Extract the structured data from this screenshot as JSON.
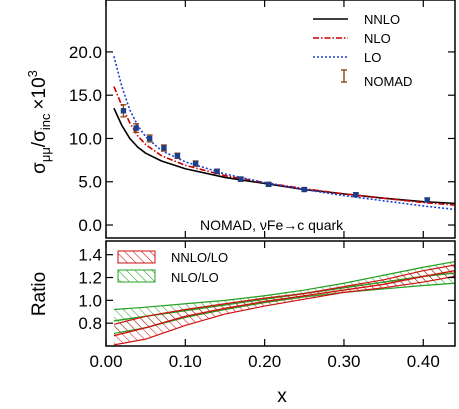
{
  "chart_data": [
    {
      "type": "line",
      "panel": "top",
      "ylabel": "σμμ/σinc ×10³",
      "ylabel_parts": {
        "sigma": "σ",
        "sub_num": "μμ",
        "slash": "/",
        "sub_den": "inc",
        "times": "×10",
        "exp": "3"
      },
      "xlim": [
        0.0,
        0.44
      ],
      "ylim": [
        -1.5,
        26.0
      ],
      "yticks": [
        0.0,
        5.0,
        10.0,
        15.0,
        20.0
      ],
      "ytick_labels": [
        "0.0",
        "5.0",
        "10.0",
        "15.0",
        "20.0"
      ],
      "annotation": "NOMAD, νFe→c quark",
      "legend": {
        "position": "top-right",
        "entries": [
          "NNLO",
          "NLO",
          "LO",
          "NOMAD"
        ]
      },
      "series": [
        {
          "name": "NNLO",
          "style": "solid",
          "color": "#000000",
          "x": [
            0.01,
            0.02,
            0.03,
            0.04,
            0.05,
            0.07,
            0.1,
            0.15,
            0.2,
            0.25,
            0.3,
            0.35,
            0.4,
            0.44
          ],
          "y": [
            13.5,
            11.5,
            10.0,
            9.0,
            8.3,
            7.4,
            6.5,
            5.5,
            4.8,
            4.1,
            3.6,
            3.1,
            2.7,
            2.5
          ]
        },
        {
          "name": "NLO",
          "style": "dash-dot",
          "color": "#cc0000",
          "x": [
            0.01,
            0.02,
            0.03,
            0.04,
            0.05,
            0.07,
            0.1,
            0.15,
            0.2,
            0.25,
            0.3,
            0.35,
            0.4,
            0.44
          ],
          "y": [
            16.0,
            13.8,
            11.8,
            10.3,
            9.3,
            8.0,
            6.9,
            5.7,
            4.9,
            4.2,
            3.6,
            3.1,
            2.6,
            2.3
          ]
        },
        {
          "name": "LO",
          "style": "dotted",
          "color": "#1f3fd1",
          "x": [
            0.01,
            0.02,
            0.03,
            0.04,
            0.05,
            0.07,
            0.1,
            0.15,
            0.2,
            0.25,
            0.3,
            0.35,
            0.4,
            0.44
          ],
          "y": [
            19.5,
            16.0,
            13.3,
            11.5,
            10.2,
            8.6,
            7.3,
            5.9,
            4.9,
            4.1,
            3.4,
            2.8,
            2.2,
            1.8
          ]
        },
        {
          "name": "NOMAD",
          "style": "points",
          "color": "#1c3f8c",
          "errorbar_color": "#8b4513",
          "x": [
            0.022,
            0.038,
            0.055,
            0.073,
            0.09,
            0.113,
            0.14,
            0.17,
            0.205,
            0.25,
            0.315,
            0.405
          ],
          "y": [
            13.2,
            11.2,
            10.0,
            8.9,
            8.0,
            7.1,
            6.2,
            5.3,
            4.7,
            4.1,
            3.5,
            2.9
          ],
          "err": [
            0.7,
            0.5,
            0.4,
            0.35,
            0.3,
            0.3,
            0.25,
            0.25,
            0.2,
            0.2,
            0.2,
            0.2
          ]
        }
      ]
    },
    {
      "type": "area",
      "panel": "bottom",
      "xlabel": "x",
      "ylabel": "Ratio",
      "xlim": [
        0.0,
        0.44
      ],
      "ylim": [
        0.6,
        1.52
      ],
      "xticks": [
        0.0,
        0.1,
        0.2,
        0.3,
        0.4
      ],
      "xtick_labels": [
        "0.00",
        "0.10",
        "0.20",
        "0.30",
        "0.40"
      ],
      "yticks": [
        0.8,
        1.0,
        1.2,
        1.4
      ],
      "ytick_labels": [
        "0.8",
        "1.0",
        "1.2",
        "1.4"
      ],
      "legend": {
        "position": "top-left",
        "entries": [
          "NNLO/LO",
          "NLO/LO"
        ]
      },
      "series": [
        {
          "name": "NNLO/LO",
          "color": "#cc1111",
          "x": [
            0.01,
            0.05,
            0.1,
            0.15,
            0.2,
            0.25,
            0.3,
            0.35,
            0.4,
            0.44
          ],
          "center": [
            0.69,
            0.76,
            0.86,
            0.93,
            0.99,
            1.04,
            1.09,
            1.14,
            1.21,
            1.26
          ],
          "upper": [
            0.79,
            0.86,
            0.92,
            0.97,
            1.02,
            1.06,
            1.12,
            1.18,
            1.26,
            1.31
          ],
          "lower": [
            0.61,
            0.66,
            0.78,
            0.88,
            0.95,
            1.01,
            1.07,
            1.11,
            1.16,
            1.21
          ]
        },
        {
          "name": "NLO/LO",
          "color": "#22a022",
          "x": [
            0.01,
            0.05,
            0.1,
            0.15,
            0.2,
            0.25,
            0.3,
            0.35,
            0.4,
            0.44
          ],
          "center": [
            0.82,
            0.86,
            0.91,
            0.96,
            1.01,
            1.06,
            1.11,
            1.16,
            1.21,
            1.24
          ],
          "upper": [
            0.92,
            0.94,
            0.97,
            1.0,
            1.04,
            1.09,
            1.15,
            1.22,
            1.29,
            1.34
          ],
          "lower": [
            0.71,
            0.76,
            0.85,
            0.92,
            0.98,
            1.03,
            1.07,
            1.1,
            1.13,
            1.15
          ]
        }
      ]
    }
  ]
}
